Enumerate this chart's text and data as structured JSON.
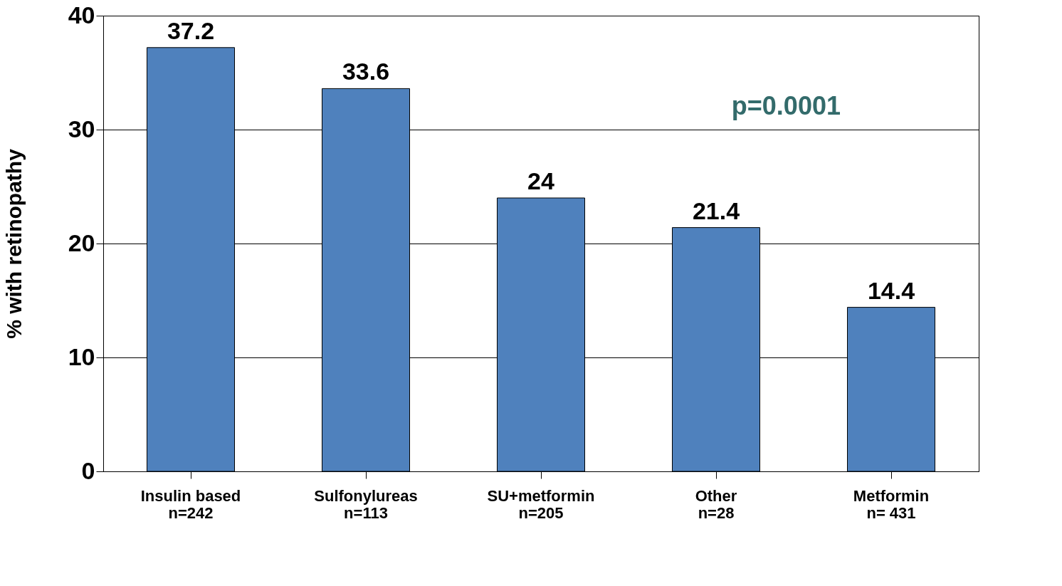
{
  "chart_data": {
    "type": "bar",
    "ylabel": "% with retinopathy",
    "categories": [
      "Insulin based\nn=242",
      "Sulfonylureas\nn=113",
      "SU+metformin\nn=205",
      "Other\nn=28",
      "Metformin\nn= 431"
    ],
    "values": [
      37.2,
      33.6,
      24,
      21.4,
      14.4
    ],
    "color": "#4f81bd",
    "ylim": [
      0,
      40
    ],
    "yticks": [
      0,
      10,
      20,
      30,
      40
    ],
    "grid": "y",
    "data_labels": true,
    "annotations": [
      "p=0.0001"
    ]
  }
}
